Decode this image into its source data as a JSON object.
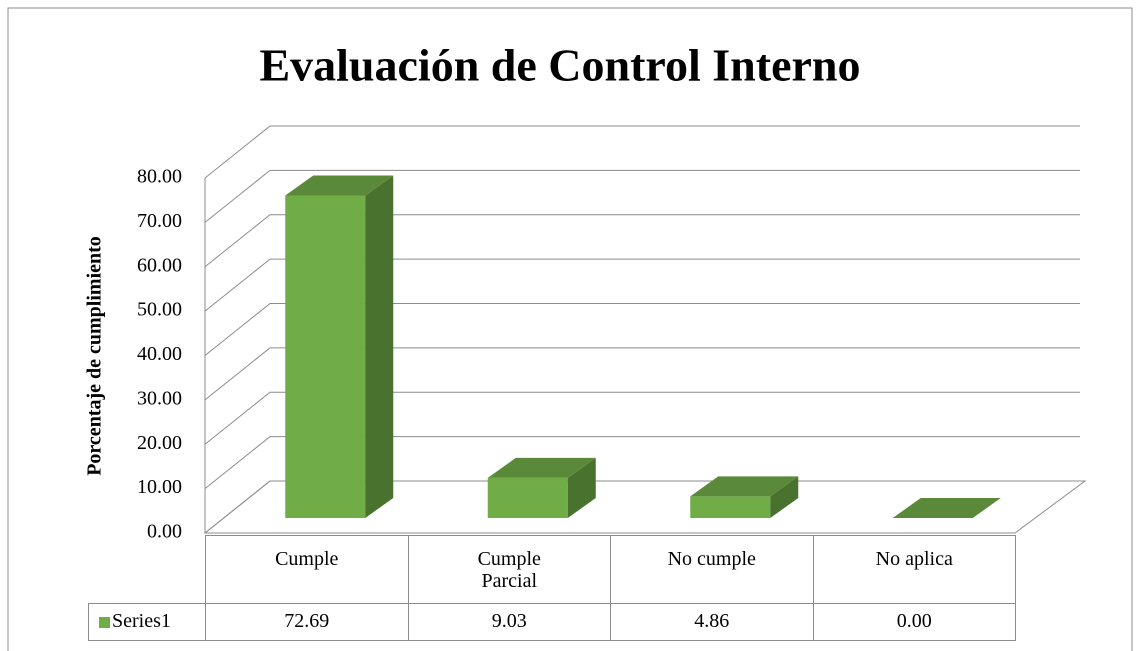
{
  "chart_data": {
    "type": "bar3d",
    "title": "Evaluación de Control Interno",
    "y_label": "Porcentaje de cumplimiento",
    "categories": [
      "Cumple",
      "Cumple Parcial",
      "No cumple",
      "No aplica"
    ],
    "series": [
      {
        "name": "Series1",
        "color": "#70ad47",
        "values": [
          72.69,
          9.03,
          4.86,
          0.0
        ],
        "value_labels": [
          "72.69",
          "9.03",
          "4.86",
          "0.00"
        ]
      }
    ],
    "ylim": [
      0,
      80
    ],
    "yticks": [
      {
        "value": 0,
        "label": "0.00"
      },
      {
        "value": 10,
        "label": "10.00"
      },
      {
        "value": 20,
        "label": "20.00"
      },
      {
        "value": 30,
        "label": "30.00"
      },
      {
        "value": 40,
        "label": "40.00"
      },
      {
        "value": 50,
        "label": "50.00"
      },
      {
        "value": 60,
        "label": "60.00"
      },
      {
        "value": 70,
        "label": "70.00"
      },
      {
        "value": 80,
        "label": "80.00"
      }
    ],
    "grid": true,
    "data_table": true
  }
}
